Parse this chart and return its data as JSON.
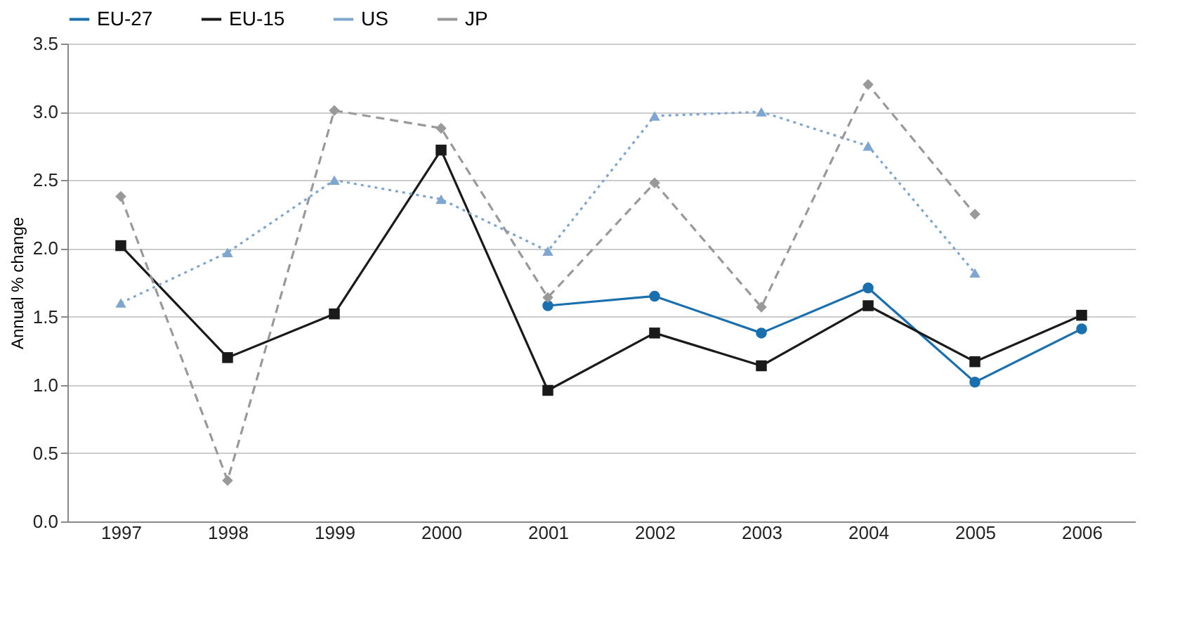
{
  "chart_data": {
    "type": "line",
    "ylabel": "Annual % change",
    "categories": [
      "1997",
      "1998",
      "1999",
      "2000",
      "2001",
      "2002",
      "2003",
      "2004",
      "2005",
      "2006"
    ],
    "series": [
      {
        "name": "EU-27",
        "color": "#1a6fae",
        "marker": "circle",
        "line_style": "solid",
        "values": [
          null,
          null,
          null,
          null,
          1.58,
          1.65,
          1.38,
          1.71,
          1.02,
          1.41
        ]
      },
      {
        "name": "EU-15",
        "color": "#1a1a1a",
        "marker": "square",
        "line_style": "solid",
        "values": [
          2.02,
          1.2,
          1.52,
          2.72,
          0.96,
          1.38,
          1.14,
          1.58,
          1.17,
          1.51
        ]
      },
      {
        "name": "US",
        "color": "#7fa6cf",
        "marker": "triangle",
        "line_style": "dotted",
        "values": [
          1.6,
          1.97,
          2.5,
          2.36,
          1.98,
          2.97,
          3.0,
          2.75,
          1.82,
          null
        ]
      },
      {
        "name": "JP",
        "color": "#999999",
        "marker": "diamond",
        "line_style": "dashed",
        "values": [
          2.38,
          0.3,
          3.01,
          2.88,
          1.64,
          2.48,
          1.57,
          3.2,
          2.25,
          null
        ]
      }
    ],
    "ylim": [
      0,
      3.5
    ],
    "yticks": [
      {
        "value": 0,
        "label": "0.0"
      },
      0.5,
      {
        "value": 1,
        "label": "1.0"
      },
      1.5,
      {
        "value": 2,
        "label": "2.0"
      },
      2.5,
      {
        "value": 3,
        "label": "3.0"
      },
      3.5
    ],
    "grid": "y",
    "legend": "top"
  }
}
